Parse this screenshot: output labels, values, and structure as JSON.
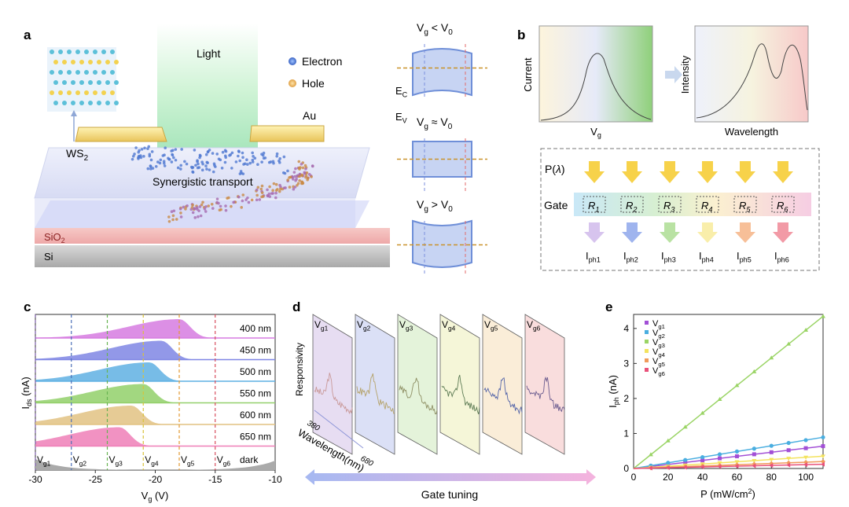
{
  "panels": {
    "a": "a",
    "b": "b",
    "c": "c",
    "d": "d",
    "e": "e"
  },
  "a": {
    "light": "Light",
    "legend_electron": "Electron",
    "legend_hole": "Hole",
    "au": "Au",
    "ws2": "WS",
    "ws2_sub": "2",
    "synergistic": "Synergistic transport",
    "sio2": "SiO",
    "sio2_sub": "2",
    "si": "Si",
    "bands": [
      {
        "v": "V",
        "vsub": "g",
        "op": " < ",
        "v0": "V",
        "v0sub": "0"
      },
      {
        "v": "V",
        "vsub": "g",
        "op": " ≈ ",
        "v0": "V",
        "v0sub": "0"
      },
      {
        "v": "V",
        "vsub": "g",
        "op": " > ",
        "v0": "V",
        "v0sub": "0"
      }
    ],
    "ec": "E",
    "ec_sub": "C",
    "ev": "E",
    "ev_sub": "V"
  },
  "b": {
    "ylabel1": "Current",
    "xlabel1": "V",
    "xlabel1_sub": "g",
    "ylabel2": "Intensity",
    "xlabel2": "Wavelength",
    "p_label": "P(",
    "p_lambda": "λ",
    "p_close": ")",
    "gate": "Gate",
    "r": [
      "R",
      "R",
      "R",
      "R",
      "R",
      "R"
    ],
    "r_sub": [
      "1",
      "2",
      "3",
      "4",
      "5",
      "6"
    ],
    "iph": [
      "I",
      "I",
      "I",
      "I",
      "I",
      "I"
    ],
    "iph_sub": [
      "ph1",
      "ph2",
      "ph3",
      "ph4",
      "ph5",
      "ph6"
    ]
  },
  "chart_data": [
    {
      "panel": "c",
      "type": "area",
      "ylabel": "I",
      "ylabel_sub": "ds",
      "ylabel_unit": " (nA)",
      "xlabel": "V",
      "xlabel_sub": "g",
      "xlabel_unit": " (V)",
      "xlim": [
        -30,
        -10
      ],
      "xticks": [
        -30,
        -25,
        -20,
        -15,
        -10
      ],
      "series": [
        {
          "name": "400 nm",
          "peak": -18,
          "color": "#d67be0"
        },
        {
          "name": "450 nm",
          "peak": -19.5,
          "color": "#7f86e4"
        },
        {
          "name": "500 nm",
          "peak": -20.5,
          "color": "#5fb0e3"
        },
        {
          "name": "550 nm",
          "peak": -21,
          "color": "#92d06a"
        },
        {
          "name": "600 nm",
          "peak": -22,
          "color": "#e2c282"
        },
        {
          "name": "650 nm",
          "peak": -23,
          "color": "#ef7fb7"
        }
      ],
      "dark": "dark",
      "vg_lines": [
        {
          "label": "V",
          "sub": "g1",
          "x": -30,
          "color": "#7a5aa5"
        },
        {
          "label": "V",
          "sub": "g2",
          "x": -27,
          "color": "#4b6fb8"
        },
        {
          "label": "V",
          "sub": "g3",
          "x": -24,
          "color": "#68b352"
        },
        {
          "label": "V",
          "sub": "g4",
          "x": -21,
          "color": "#d9c23a"
        },
        {
          "label": "V",
          "sub": "g5",
          "x": -18,
          "color": "#e39a34"
        },
        {
          "label": "V",
          "sub": "g6",
          "x": -15,
          "color": "#d84f5f"
        }
      ]
    },
    {
      "panel": "d",
      "type": "line",
      "ylabel": "Responsivity",
      "xlabel": "Wavelength(nm)",
      "xmin": "380",
      "xmax": "680",
      "gate": "Gate tuning",
      "frames": [
        {
          "label": "V",
          "sub": "g1",
          "fill": "#e6dcf2"
        },
        {
          "label": "V",
          "sub": "g2",
          "fill": "#dadff6"
        },
        {
          "label": "V",
          "sub": "g3",
          "fill": "#e3f3d9"
        },
        {
          "label": "V",
          "sub": "g4",
          "fill": "#f5f6d6"
        },
        {
          "label": "V",
          "sub": "g5",
          "fill": "#faedd6"
        },
        {
          "label": "V",
          "sub": "g6",
          "fill": "#f9dcdc"
        }
      ]
    },
    {
      "panel": "e",
      "type": "scatter",
      "ylabel": "I",
      "ylabel_sub": "ph",
      "ylabel_unit": " (nA)",
      "xlabel": "P (mW/cm",
      "xlabel_sup": "2",
      "xlabel_close": ")",
      "xlim": [
        0,
        110
      ],
      "ylim": [
        0,
        4.4
      ],
      "xticks": [
        0,
        20,
        40,
        60,
        80,
        100
      ],
      "yticks": [
        0,
        1,
        2,
        3,
        4
      ],
      "series": [
        {
          "name": "V",
          "sub": "g1",
          "color": "#a24fd6",
          "slope": 0.0058,
          "marker": "square"
        },
        {
          "name": "V",
          "sub": "g2",
          "color": "#4aaee0",
          "slope": 0.0081,
          "marker": "circle"
        },
        {
          "name": "V",
          "sub": "g3",
          "color": "#9ad465",
          "slope": 0.0395,
          "marker": "triangle"
        },
        {
          "name": "V",
          "sub": "g4",
          "color": "#f3e35e",
          "slope": 0.0032,
          "marker": "triangle-down"
        },
        {
          "name": "V",
          "sub": "g5",
          "color": "#f09a5a",
          "slope": 0.0018,
          "marker": "diamond"
        },
        {
          "name": "V",
          "sub": "g6",
          "color": "#e9517a",
          "slope": 0.0011,
          "marker": "triangle-left"
        }
      ],
      "x_points": [
        10,
        20,
        30,
        40,
        50,
        60,
        70,
        80,
        90,
        100,
        110
      ]
    }
  ]
}
